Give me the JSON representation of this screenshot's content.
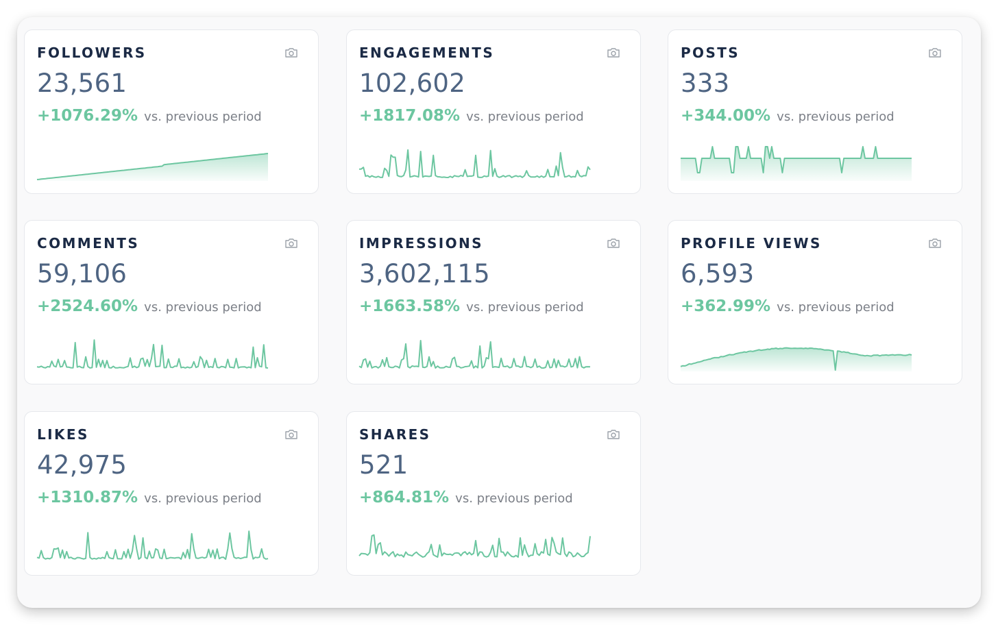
{
  "suffix": "vs. previous period",
  "colors": {
    "accent": "#6cc6a0",
    "title": "#1b2a45",
    "value": "#4e6482",
    "muted": "#7b7f87"
  },
  "cards": [
    {
      "id": "followers",
      "title": "FOLLOWERS",
      "value": "23,561",
      "change": "+1076.29%",
      "spark": "growth",
      "icon": "camera-icon"
    },
    {
      "id": "engagements",
      "title": "ENGAGEMENTS",
      "value": "102,602",
      "change": "+1817.08%",
      "spark": "spiky",
      "icon": "camera-icon"
    },
    {
      "id": "posts",
      "title": "POSTS",
      "value": "333",
      "change": "+344.00%",
      "spark": "flat-spikes",
      "icon": "camera-icon"
    },
    {
      "id": "comments",
      "title": "COMMENTS",
      "value": "59,106",
      "change": "+2524.60%",
      "spark": "spiky",
      "icon": "camera-icon"
    },
    {
      "id": "impressions",
      "title": "IMPRESSIONS",
      "value": "3,602,115",
      "change": "+1663.58%",
      "spark": "spiky",
      "icon": "camera-icon"
    },
    {
      "id": "profile-views",
      "title": "PROFILE VIEWS",
      "value": "6,593",
      "change": "+362.99%",
      "spark": "hump",
      "icon": "camera-icon"
    },
    {
      "id": "likes",
      "title": "LIKES",
      "value": "42,975",
      "change": "+1310.87%",
      "spark": "spiky",
      "icon": "camera-icon"
    },
    {
      "id": "shares",
      "title": "SHARES",
      "value": "521",
      "change": "+864.81%",
      "spark": "noisy",
      "icon": "camera-icon"
    }
  ]
}
